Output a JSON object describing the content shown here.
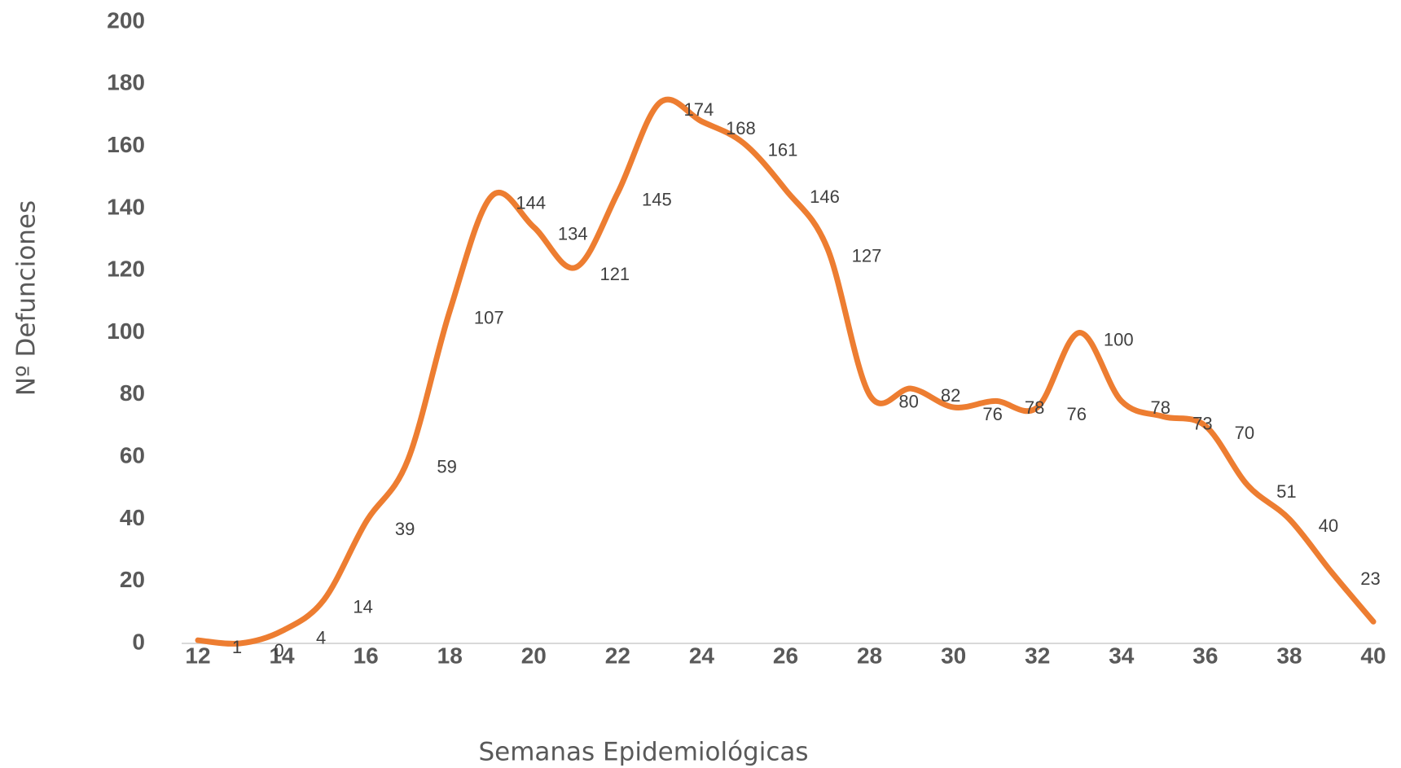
{
  "chart_data": {
    "type": "line",
    "x_label": "Semanas Epidemiológicas",
    "y_label": "Nº Defunciones",
    "x": [
      12,
      13,
      14,
      15,
      16,
      17,
      18,
      19,
      20,
      21,
      22,
      23,
      24,
      25,
      26,
      27,
      28,
      29,
      30,
      31,
      32,
      33,
      34,
      35,
      36,
      37,
      38,
      39,
      40
    ],
    "series": [
      {
        "name": "Defunciones",
        "color": "#ed7d31",
        "values": [
          1,
          0,
          4,
          14,
          39,
          59,
          107,
          144,
          134,
          121,
          145,
          174,
          168,
          161,
          146,
          127,
          80,
          82,
          76,
          78,
          76,
          100,
          78,
          73,
          70,
          51,
          40,
          23,
          7
        ]
      }
    ],
    "xlim": [
      12,
      40
    ],
    "xticks": [
      12,
      14,
      16,
      18,
      20,
      22,
      24,
      26,
      28,
      30,
      32,
      34,
      36,
      38,
      40
    ],
    "ylim": [
      0,
      200
    ],
    "yticks": [
      0,
      20,
      40,
      60,
      80,
      100,
      120,
      140,
      160,
      180,
      200
    ],
    "smooth": true,
    "data_labels": true
  }
}
